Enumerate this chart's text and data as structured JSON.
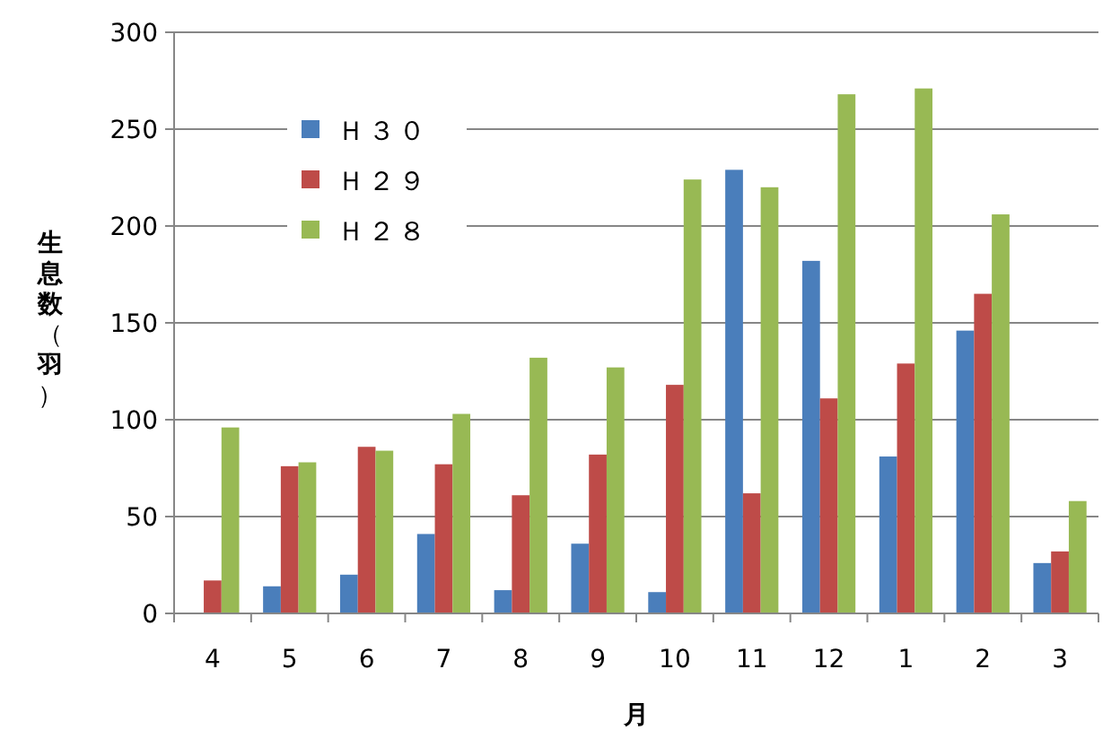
{
  "chart_data": {
    "type": "bar",
    "ylabel": "生息数（羽）",
    "xlabel": "月",
    "categories": [
      "4",
      "5",
      "6",
      "7",
      "8",
      "9",
      "10",
      "11",
      "12",
      "1",
      "2",
      "3"
    ],
    "series": [
      {
        "name": "Ｈ３０",
        "color": "#4a7ebb",
        "values": [
          null,
          14,
          20,
          41,
          12,
          36,
          11,
          229,
          182,
          81,
          146,
          26
        ]
      },
      {
        "name": "Ｈ２９",
        "color": "#be4b48",
        "values": [
          17,
          76,
          86,
          77,
          61,
          82,
          118,
          62,
          111,
          129,
          165,
          32
        ]
      },
      {
        "name": "Ｈ２８",
        "color": "#98b954",
        "values": [
          96,
          78,
          84,
          103,
          132,
          127,
          224,
          220,
          268,
          271,
          206,
          58
        ]
      }
    ],
    "ylim": [
      0,
      300
    ],
    "yticks": [
      0,
      50,
      100,
      150,
      200,
      250,
      300
    ],
    "grid": "y",
    "legend": "top left"
  }
}
